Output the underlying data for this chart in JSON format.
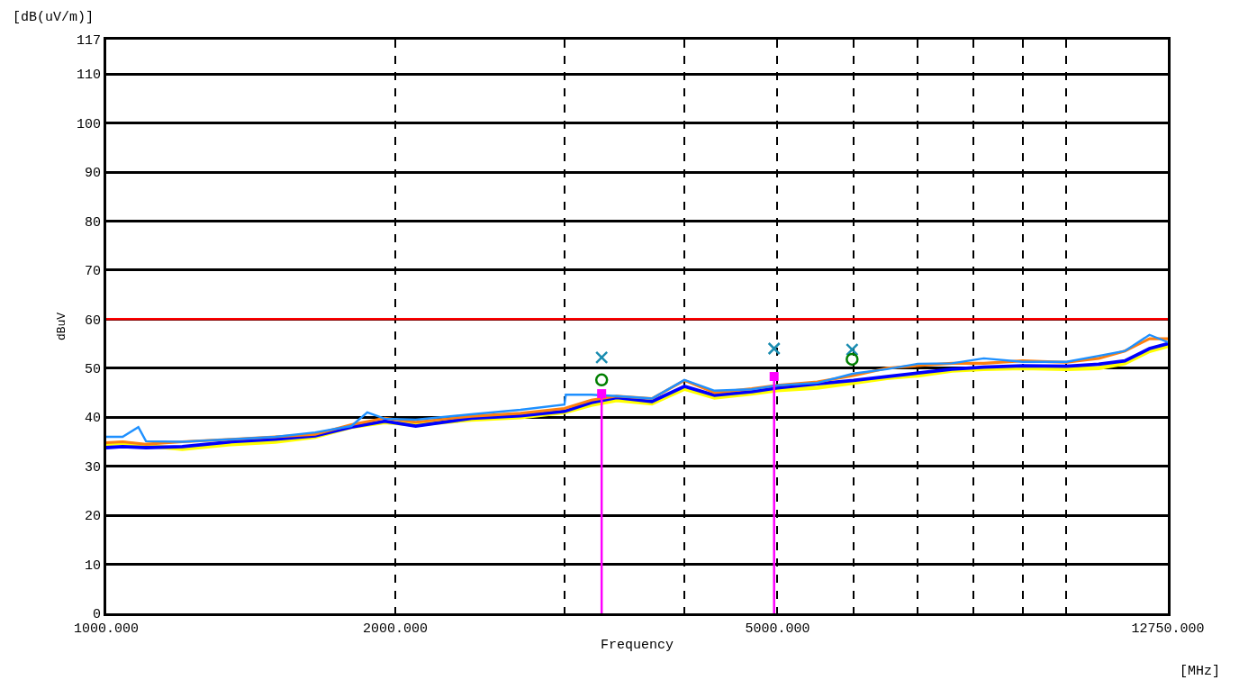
{
  "chart_data": {
    "type": "line",
    "title": "[dB(uV/m)]",
    "xlabel": "Frequency",
    "ylabel": "dBuV",
    "annotations": [
      "[MHz]"
    ],
    "log": "x",
    "grid": true,
    "marker": "none",
    "line_style": "solid",
    "xlim": [
      1000,
      12750
    ],
    "ylim": [
      0,
      117
    ],
    "xticks": [
      {
        "value": 1000,
        "label": "1000.000"
      },
      {
        "value": 2000,
        "label": "2000.000"
      },
      {
        "value": 3000,
        "label": null
      },
      {
        "value": 4000,
        "label": null
      },
      {
        "value": 5000,
        "label": "5000.000"
      },
      {
        "value": 6000,
        "label": null
      },
      {
        "value": 7000,
        "label": null
      },
      {
        "value": 8000,
        "label": null
      },
      {
        "value": 9000,
        "label": null
      },
      {
        "value": 10000,
        "label": null
      },
      {
        "value": 12750,
        "label": "12750.000"
      }
    ],
    "yticks": [
      0,
      10,
      20,
      30,
      40,
      50,
      60,
      70,
      80,
      90,
      100,
      110,
      117
    ],
    "ref_lines": [
      {
        "axis": "y",
        "value": 60,
        "color": "#ff0000"
      }
    ],
    "series": [
      {
        "color": "#ffff00",
        "x": [
          1000,
          1040,
          1100,
          1200,
          1350,
          1500,
          1650,
          1800,
          1950,
          2100,
          2400,
          2700,
          3000,
          3200,
          3400,
          3700,
          4000,
          4300,
          4700,
          5000,
          5500,
          6000,
          6500,
          7000,
          7600,
          8200,
          9000,
          10000,
          10800,
          11500,
          12200,
          12750
        ],
        "values": [
          34.5,
          34.8,
          34.2,
          33.5,
          34.5,
          35.0,
          36.0,
          38.0,
          39.0,
          38.5,
          39.5,
          40.0,
          41.0,
          42.5,
          43.5,
          42.8,
          45.8,
          44.0,
          44.8,
          45.5,
          46.0,
          47.0,
          48.0,
          48.5,
          49.5,
          49.8,
          50.0,
          49.8,
          50.0,
          51.0,
          53.5,
          54.5
        ]
      },
      {
        "color": "#0000ff",
        "x": [
          1000,
          1040,
          1100,
          1200,
          1350,
          1500,
          1650,
          1800,
          1950,
          2100,
          2400,
          2700,
          3000,
          3200,
          3400,
          3700,
          4000,
          4300,
          4700,
          5000,
          5500,
          6000,
          6500,
          7000,
          7600,
          8200,
          9000,
          10000,
          10800,
          11500,
          12200,
          12750
        ],
        "values": [
          33.8,
          34.0,
          33.8,
          34.0,
          35.0,
          35.5,
          36.2,
          38.0,
          39.2,
          38.2,
          39.8,
          40.3,
          41.2,
          43.0,
          44.0,
          43.2,
          46.3,
          44.5,
          45.2,
          46.0,
          46.8,
          47.5,
          48.3,
          49.0,
          49.8,
          50.2,
          50.5,
          50.4,
          50.8,
          51.5,
          54.0,
          55.0
        ]
      },
      {
        "color": "#ff7f0e",
        "x": [
          1000,
          1040,
          1100,
          1200,
          1350,
          1500,
          1650,
          1800,
          1950,
          2100,
          2400,
          2700,
          3000,
          3200,
          3400,
          3700,
          4000,
          4300,
          4700,
          5000,
          5500,
          6000,
          6500,
          7000,
          7600,
          8200,
          9000,
          10000,
          10800,
          11500,
          12200,
          12750
        ],
        "values": [
          34.8,
          35.0,
          34.5,
          35.0,
          35.5,
          36.0,
          36.5,
          38.5,
          39.8,
          39.0,
          40.2,
          40.8,
          41.8,
          43.5,
          44.3,
          43.8,
          47.5,
          45.0,
          45.8,
          46.5,
          47.2,
          48.5,
          50.0,
          50.5,
          51.0,
          51.0,
          51.5,
          51.2,
          52.0,
          53.5,
          56.0,
          56.0
        ]
      },
      {
        "color": "#1e90ff",
        "x": [
          1000,
          1040,
          1080,
          1100,
          1200,
          1350,
          1500,
          1650,
          1800,
          1870,
          1950,
          2100,
          2400,
          2700,
          3000,
          3010,
          3200,
          3400,
          3700,
          4000,
          4300,
          4700,
          5000,
          5500,
          6000,
          6500,
          7000,
          7600,
          8200,
          9000,
          10000,
          10800,
          11500,
          12200,
          12750
        ],
        "values": [
          36.0,
          36.0,
          38.0,
          35.1,
          35.0,
          35.5,
          36.0,
          36.9,
          38.2,
          41.0,
          39.7,
          39.5,
          40.6,
          41.5,
          42.6,
          44.6,
          44.6,
          44.3,
          43.8,
          47.6,
          45.4,
          45.7,
          46.5,
          47.0,
          48.9,
          49.8,
          50.9,
          51.0,
          52.0,
          51.3,
          51.3,
          52.5,
          53.5,
          56.8,
          55.3
        ]
      },
      {
        "type": "lollipop",
        "color": "#ff00ff",
        "marker": "square",
        "x": [
          3280,
          4960
        ],
        "values": [
          44.8,
          48.3
        ]
      },
      {
        "type": "scatter",
        "color": "#1a8cb0",
        "marker": "cross",
        "x": [
          3280,
          4960,
          5980
        ],
        "values": [
          52.2,
          54.0,
          53.8
        ]
      },
      {
        "type": "scatter",
        "color": "#007f00",
        "marker": "circle",
        "x": [
          3280,
          5980
        ],
        "values": [
          47.6,
          51.8
        ]
      }
    ]
  }
}
